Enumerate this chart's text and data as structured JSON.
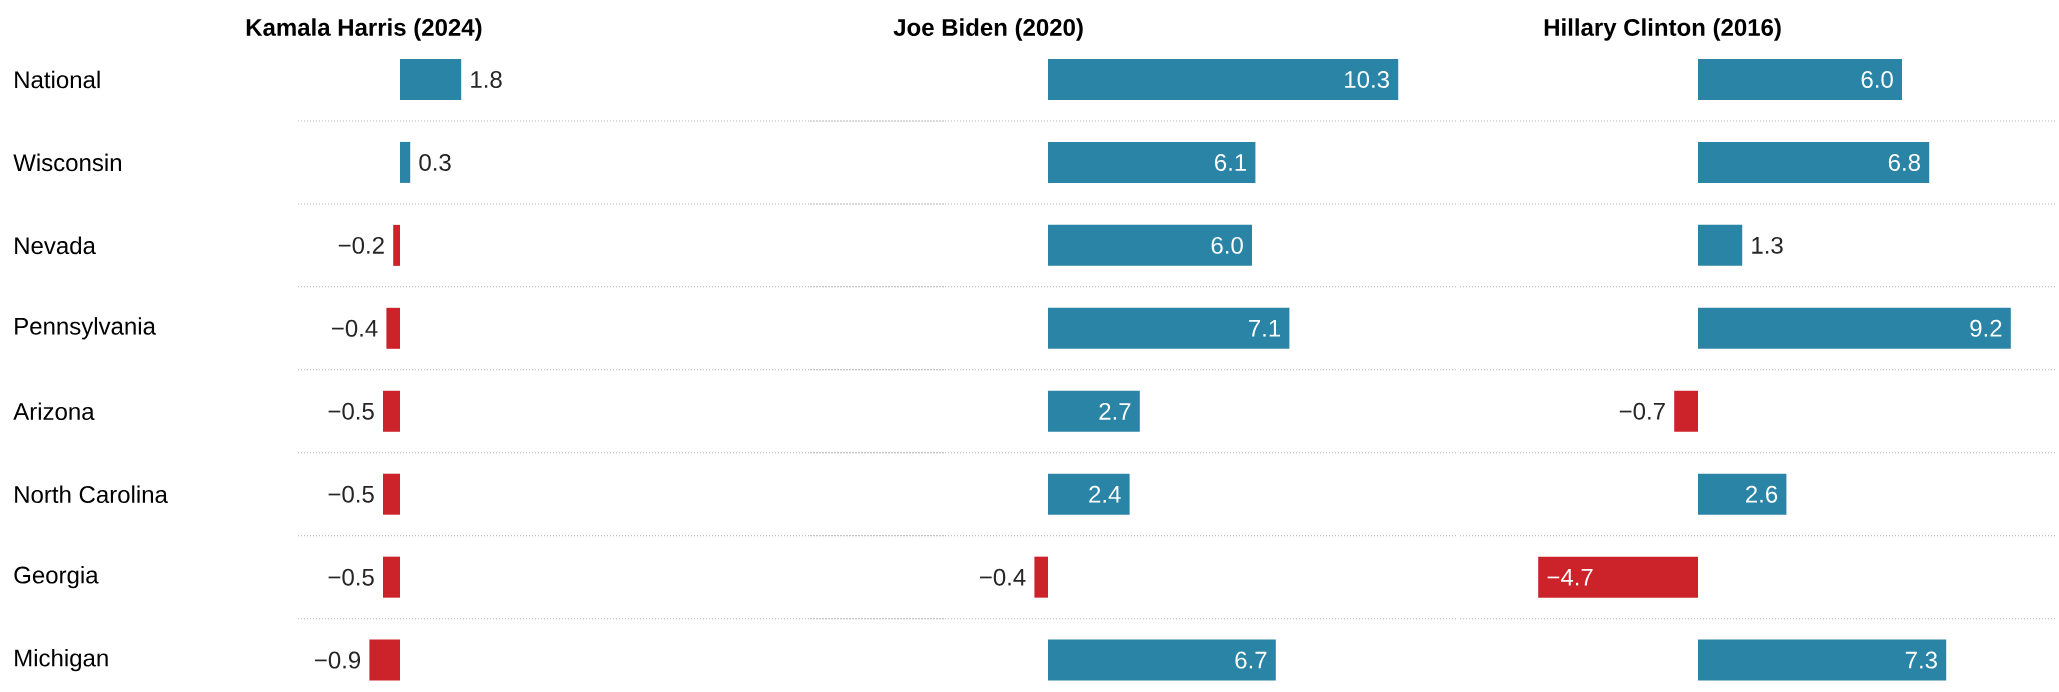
{
  "chart_data": [
    {
      "type": "bar",
      "orientation": "horizontal",
      "title": "Kamala Harris (2024)",
      "categories": [
        "National",
        "Wisconsin",
        "Nevada",
        "Pennsylvania",
        "Arizona",
        "North Carolina",
        "Georgia",
        "Michigan"
      ],
      "values": [
        1.8,
        0.3,
        -0.2,
        -0.4,
        -0.5,
        -0.5,
        -0.5,
        -0.9
      ],
      "value_labels": [
        "1.8",
        "0.3",
        "−0.2",
        "−0.4",
        "−0.5",
        "−0.5",
        "−0.5",
        "−0.9"
      ],
      "colors": [
        "#2a84a6",
        "#2a84a6",
        "#cc2229",
        "#cc2229",
        "#cc2229",
        "#cc2229",
        "#cc2229",
        "#cc2229"
      ],
      "xlim": [
        -3,
        16
      ],
      "grid": "y",
      "tick_labels": "y"
    },
    {
      "type": "bar",
      "orientation": "horizontal",
      "title": "Joe Biden (2020)",
      "categories": [
        null,
        null,
        null,
        null,
        null,
        null,
        null,
        null
      ],
      "values": [
        10.3,
        6.1,
        6.0,
        7.1,
        2.7,
        2.4,
        -0.4,
        6.7
      ],
      "value_labels": [
        "10.3",
        "6.1",
        "6.0",
        "7.1",
        "2.7",
        "2.4",
        "−0.4",
        "6.7"
      ],
      "colors": [
        "#2a84a6",
        "#2a84a6",
        "#2a84a6",
        "#2a84a6",
        "#2a84a6",
        "#2a84a6",
        "#cc2229",
        "#2a84a6"
      ],
      "xlim": [
        -7,
        12
      ],
      "grid": "y",
      "tick_labels": false
    },
    {
      "type": "bar",
      "orientation": "horizontal",
      "title": "Hillary Clinton (2016)",
      "categories": [
        null,
        null,
        null,
        null,
        null,
        null,
        null,
        null
      ],
      "values": [
        6.0,
        6.8,
        1.3,
        9.2,
        -0.7,
        2.6,
        -4.7,
        7.3
      ],
      "value_labels": [
        "6.0",
        "6.8",
        "1.3",
        "9.2",
        "−0.7",
        "2.6",
        "−4.7",
        "7.3"
      ],
      "colors": [
        "#2a84a6",
        "#2a84a6",
        "#2a84a6",
        "#2a84a6",
        "#cc2229",
        "#2a84a6",
        "#cc2229",
        "#2a84a6"
      ],
      "xlim": [
        -7,
        10.5
      ],
      "grid": "y",
      "tick_labels": false
    }
  ]
}
